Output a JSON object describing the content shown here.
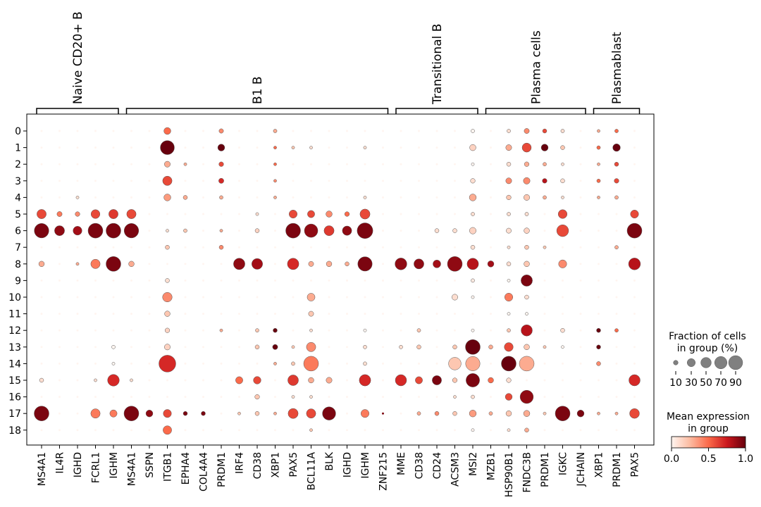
{
  "chart_data": {
    "type": "dotplot",
    "title": "",
    "xlabel": "",
    "ylabel": "",
    "rows": [
      "0",
      "1",
      "2",
      "3",
      "4",
      "5",
      "6",
      "7",
      "8",
      "9",
      "10",
      "11",
      "12",
      "13",
      "14",
      "15",
      "16",
      "17",
      "18"
    ],
    "genes": [
      "MS4A1",
      "IL4R",
      "IGHD",
      "FCRL1",
      "IGHM",
      "MS4A1",
      "SSPN",
      "ITGB1",
      "EPHA4",
      "COL4A4",
      "PRDM1",
      "IRF4",
      "CD38",
      "XBP1",
      "PAX5",
      "BCL11A",
      "BLK",
      "IGHD",
      "IGHM",
      "ZNF215",
      "MME",
      "CD38",
      "CD24",
      "ACSM3",
      "MSI2",
      "MZB1",
      "HSP90B1",
      "FNDC3B",
      "PRDM1",
      "IGKC",
      "JCHAIN",
      "XBP1",
      "PRDM1",
      "PAX5"
    ],
    "groups": [
      {
        "label": "Naive CD20+ B",
        "start": 0,
        "end": 4
      },
      {
        "label": "B1 B",
        "start": 5,
        "end": 19
      },
      {
        "label": "Transitional B",
        "start": 20,
        "end": 24
      },
      {
        "label": "Plasma cells",
        "start": 25,
        "end": 30
      },
      {
        "label": "Plasmablast",
        "start": 31,
        "end": 33
      }
    ],
    "fraction": [
      [
        2,
        2,
        2,
        2,
        2,
        2,
        2,
        22,
        2,
        2,
        9,
        2,
        2,
        6,
        2,
        2,
        2,
        2,
        2,
        2,
        2,
        2,
        2,
        2,
        6,
        2,
        6,
        12,
        8,
        6,
        2,
        4,
        6,
        2
      ],
      [
        2,
        2,
        2,
        2,
        2,
        2,
        2,
        90,
        2,
        2,
        22,
        2,
        2,
        4,
        4,
        4,
        2,
        2,
        4,
        2,
        2,
        2,
        2,
        2,
        18,
        2,
        16,
        38,
        22,
        8,
        2,
        6,
        26,
        2
      ],
      [
        2,
        2,
        2,
        2,
        2,
        2,
        2,
        16,
        4,
        2,
        10,
        2,
        2,
        4,
        2,
        2,
        2,
        2,
        2,
        2,
        2,
        2,
        2,
        2,
        4,
        2,
        8,
        10,
        6,
        4,
        2,
        4,
        8,
        2
      ],
      [
        2,
        2,
        2,
        2,
        2,
        2,
        2,
        40,
        2,
        2,
        12,
        2,
        2,
        4,
        2,
        2,
        2,
        2,
        2,
        2,
        2,
        2,
        2,
        2,
        10,
        2,
        16,
        20,
        10,
        8,
        2,
        6,
        10,
        2
      ],
      [
        2,
        2,
        4,
        2,
        2,
        2,
        2,
        22,
        8,
        2,
        6,
        2,
        2,
        4,
        2,
        2,
        2,
        2,
        4,
        2,
        2,
        2,
        2,
        2,
        22,
        2,
        10,
        16,
        6,
        4,
        2,
        4,
        6,
        2
      ],
      [
        40,
        12,
        10,
        36,
        40,
        40,
        2,
        2,
        2,
        2,
        2,
        2,
        4,
        2,
        30,
        24,
        18,
        10,
        46,
        2,
        2,
        2,
        2,
        2,
        6,
        2,
        6,
        6,
        2,
        36,
        2,
        2,
        2,
        30
      ],
      [
        96,
        46,
        36,
        100,
        100,
        96,
        2,
        4,
        6,
        2,
        4,
        2,
        8,
        2,
        100,
        82,
        46,
        40,
        112,
        2,
        2,
        2,
        8,
        8,
        20,
        2,
        12,
        14,
        2,
        64,
        2,
        2,
        2,
        100
      ],
      [
        2,
        2,
        2,
        2,
        2,
        2,
        2,
        8,
        2,
        2,
        8,
        2,
        2,
        2,
        2,
        2,
        2,
        2,
        2,
        2,
        2,
        2,
        2,
        2,
        8,
        2,
        4,
        8,
        4,
        2,
        2,
        2,
        6,
        2
      ],
      [
        14,
        2,
        4,
        40,
        100,
        14,
        2,
        2,
        2,
        2,
        2,
        60,
        54,
        2,
        60,
        12,
        14,
        8,
        94,
        2,
        64,
        46,
        28,
        100,
        60,
        18,
        8,
        14,
        2,
        30,
        2,
        2,
        2,
        64
      ],
      [
        2,
        2,
        2,
        2,
        2,
        2,
        2,
        8,
        2,
        2,
        2,
        2,
        2,
        2,
        2,
        2,
        2,
        2,
        2,
        2,
        2,
        2,
        2,
        2,
        6,
        2,
        4,
        60,
        2,
        2,
        2,
        2,
        2,
        2
      ],
      [
        2,
        2,
        2,
        2,
        2,
        2,
        2,
        42,
        2,
        2,
        2,
        2,
        2,
        2,
        2,
        28,
        2,
        2,
        2,
        2,
        2,
        2,
        2,
        16,
        4,
        2,
        30,
        8,
        2,
        2,
        2,
        2,
        2,
        2
      ],
      [
        2,
        2,
        2,
        2,
        2,
        2,
        2,
        14,
        2,
        2,
        2,
        2,
        2,
        2,
        2,
        12,
        2,
        2,
        2,
        2,
        2,
        2,
        2,
        2,
        2,
        2,
        4,
        4,
        2,
        2,
        2,
        2,
        2,
        2
      ],
      [
        2,
        2,
        2,
        2,
        2,
        2,
        2,
        10,
        2,
        2,
        4,
        2,
        6,
        8,
        2,
        4,
        2,
        2,
        4,
        2,
        2,
        6,
        2,
        2,
        4,
        2,
        6,
        58,
        2,
        8,
        2,
        8,
        6,
        2
      ],
      [
        2,
        2,
        2,
        2,
        6,
        2,
        2,
        16,
        2,
        2,
        2,
        2,
        8,
        12,
        4,
        40,
        2,
        2,
        6,
        2,
        6,
        8,
        2,
        8,
        100,
        8,
        36,
        14,
        4,
        4,
        2,
        8,
        2,
        2
      ],
      [
        2,
        2,
        2,
        2,
        4,
        2,
        2,
        130,
        2,
        2,
        2,
        2,
        2,
        4,
        6,
        100,
        2,
        2,
        6,
        2,
        2,
        2,
        2,
        72,
        94,
        2,
        100,
        100,
        2,
        2,
        2,
        8,
        2,
        2
      ],
      [
        8,
        2,
        2,
        4,
        62,
        4,
        2,
        2,
        2,
        2,
        2,
        24,
        26,
        2,
        52,
        14,
        16,
        2,
        60,
        2,
        58,
        24,
        40,
        10,
        84,
        14,
        10,
        2,
        2,
        2,
        2,
        2,
        2,
        58
      ],
      [
        2,
        2,
        2,
        2,
        2,
        2,
        2,
        2,
        2,
        2,
        2,
        2,
        10,
        2,
        4,
        4,
        2,
        2,
        2,
        2,
        2,
        2,
        2,
        4,
        6,
        2,
        22,
        80,
        2,
        2,
        2,
        2,
        2,
        2
      ],
      [
        100,
        2,
        2,
        40,
        24,
        100,
        22,
        30,
        8,
        8,
        2,
        4,
        8,
        4,
        46,
        40,
        80,
        2,
        30,
        2,
        2,
        6,
        8,
        8,
        22,
        6,
        14,
        18,
        4,
        100,
        22,
        4,
        4,
        44
      ],
      [
        2,
        2,
        2,
        2,
        2,
        2,
        2,
        34,
        2,
        2,
        2,
        2,
        2,
        2,
        2,
        4,
        2,
        2,
        2,
        2,
        2,
        2,
        2,
        2,
        4,
        2,
        4,
        8,
        2,
        2,
        2,
        2,
        2,
        2
      ]
    ],
    "expression": [
      [
        0,
        0,
        0,
        0,
        0,
        0,
        0,
        0.5,
        0,
        0,
        0.4,
        0,
        0,
        0.3,
        0,
        0,
        0,
        0,
        0,
        0,
        0,
        0,
        0,
        0,
        0,
        0,
        0.1,
        0.4,
        0.6,
        0.1,
        0,
        0.3,
        0.5,
        0
      ],
      [
        0,
        0,
        0,
        0,
        0,
        0,
        0,
        1.0,
        0,
        0,
        1.0,
        0,
        0,
        0.5,
        0.2,
        0.1,
        0,
        0,
        0.1,
        0,
        0,
        0,
        0,
        0,
        0.15,
        0,
        0.3,
        0.6,
        1.0,
        0.2,
        0,
        0.5,
        1.0,
        0
      ],
      [
        0,
        0,
        0,
        0,
        0,
        0,
        0,
        0.3,
        0.3,
        0,
        0.6,
        0,
        0,
        0.5,
        0,
        0,
        0,
        0,
        0,
        0,
        0,
        0,
        0,
        0,
        0,
        0,
        0.1,
        0.3,
        0.3,
        0.1,
        0,
        0.3,
        0.6,
        0
      ],
      [
        0,
        0,
        0,
        0,
        0,
        0,
        0,
        0.6,
        0,
        0,
        0.7,
        0,
        0,
        0.4,
        0,
        0,
        0,
        0,
        0,
        0,
        0,
        0,
        0,
        0,
        0.1,
        0,
        0.4,
        0.4,
        0.8,
        0.1,
        0,
        0.5,
        0.6,
        0
      ],
      [
        0,
        0,
        0.1,
        0,
        0,
        0,
        0,
        0.35,
        0.3,
        0,
        0.3,
        0,
        0,
        0.3,
        0,
        0,
        0,
        0,
        0.1,
        0,
        0,
        0,
        0,
        0,
        0.3,
        0,
        0.2,
        0.2,
        0.3,
        0.1,
        0,
        0.3,
        0.3,
        0
      ],
      [
        0.6,
        0.45,
        0.4,
        0.6,
        0.65,
        0.6,
        0,
        0,
        0,
        0,
        0,
        0,
        0.1,
        0,
        0.6,
        0.6,
        0.4,
        0.5,
        0.6,
        0,
        0,
        0,
        0,
        0,
        0.1,
        0,
        0.1,
        0.1,
        0,
        0.6,
        0,
        0,
        0,
        0.6
      ],
      [
        0.95,
        0.9,
        0.85,
        0.95,
        0.95,
        0.95,
        0,
        0.1,
        0.2,
        0,
        0.3,
        0,
        0.15,
        0,
        0.95,
        0.9,
        0.65,
        0.9,
        0.95,
        0,
        0,
        0,
        0.1,
        0.1,
        0.15,
        0,
        0.1,
        0.15,
        0,
        0.6,
        0,
        0,
        0,
        0.95
      ],
      [
        0,
        0,
        0,
        0,
        0,
        0,
        0,
        0.2,
        0,
        0,
        0.4,
        0,
        0,
        0,
        0,
        0,
        0,
        0,
        0,
        0,
        0,
        0,
        0,
        0,
        0.1,
        0,
        0.1,
        0.2,
        0.2,
        0,
        0,
        0,
        0.3,
        0
      ],
      [
        0.3,
        0,
        0.3,
        0.45,
        0.95,
        0.3,
        0,
        0,
        0,
        0,
        0,
        0.9,
        0.85,
        0,
        0.7,
        0.3,
        0.3,
        0.3,
        0.95,
        0,
        0.9,
        0.9,
        0.85,
        0.9,
        0.8,
        0.85,
        0.1,
        0.2,
        0,
        0.4,
        0,
        0,
        0,
        0.8
      ],
      [
        0,
        0,
        0,
        0,
        0,
        0,
        0,
        0.1,
        0,
        0,
        0,
        0,
        0,
        0,
        0,
        0,
        0,
        0,
        0,
        0,
        0,
        0,
        0,
        0,
        0.05,
        0,
        0,
        0.95,
        0,
        0,
        0,
        0,
        0,
        0
      ],
      [
        0,
        0,
        0,
        0,
        0,
        0,
        0,
        0.4,
        0,
        0,
        0,
        0,
        0,
        0,
        0,
        0.3,
        0,
        0,
        0,
        0,
        0,
        0,
        0,
        0.1,
        0,
        0,
        0.45,
        0.1,
        0,
        0,
        0,
        0,
        0,
        0
      ],
      [
        0,
        0,
        0,
        0,
        0,
        0,
        0,
        0.2,
        0,
        0,
        0,
        0,
        0,
        0,
        0,
        0.2,
        0,
        0,
        0,
        0,
        0,
        0,
        0,
        0,
        0,
        0,
        0,
        0,
        0,
        0,
        0,
        0,
        0,
        0
      ],
      [
        0,
        0,
        0,
        0,
        0,
        0,
        0,
        0.15,
        0,
        0,
        0.3,
        0,
        0.2,
        1.0,
        0,
        0.1,
        0,
        0,
        0,
        0,
        0,
        0.2,
        0,
        0,
        0,
        0,
        0.2,
        0.8,
        0,
        0.1,
        0,
        1.0,
        0.5,
        0
      ],
      [
        0,
        0,
        0,
        0,
        0,
        0,
        0,
        0.15,
        0,
        0,
        0,
        0,
        0.2,
        1.0,
        0.2,
        0.4,
        0,
        0,
        0.1,
        0,
        0.1,
        0.2,
        0,
        0.2,
        1.0,
        0.3,
        0.6,
        0.2,
        0.2,
        0,
        0,
        1.0,
        0,
        0
      ],
      [
        0,
        0,
        0,
        0,
        0,
        0,
        0,
        0.7,
        0,
        0,
        0,
        0,
        0,
        0.3,
        0.2,
        0.45,
        0,
        0,
        0.1,
        0,
        0,
        0,
        0,
        0.2,
        0.3,
        0,
        1.0,
        0.3,
        0,
        0,
        0,
        0.4,
        0,
        0
      ],
      [
        0.1,
        0,
        0,
        0.1,
        0.7,
        0.1,
        0,
        0,
        0,
        0,
        0,
        0.5,
        0.6,
        0,
        0.65,
        0.3,
        0.3,
        0,
        0.7,
        0,
        0.7,
        0.6,
        0.95,
        0.2,
        0.95,
        0.5,
        0.1,
        0,
        0,
        0,
        0,
        0,
        0,
        0.7
      ],
      [
        0,
        0,
        0,
        0,
        0,
        0,
        0,
        0,
        0,
        0,
        0,
        0,
        0.2,
        0,
        0.1,
        0.1,
        0,
        0,
        0,
        0,
        0,
        0,
        0,
        0.1,
        0.1,
        0,
        0.6,
        0.9,
        0,
        0,
        0,
        0,
        0,
        0
      ],
      [
        0.95,
        0,
        0,
        0.45,
        0.45,
        0.95,
        0.9,
        0.6,
        0.95,
        0.95,
        0,
        0.2,
        0.2,
        0.3,
        0.6,
        0.6,
        0.95,
        0,
        0.45,
        0.95,
        0,
        0.3,
        0.4,
        0.2,
        0.35,
        0.3,
        0.2,
        0.3,
        0.2,
        0.95,
        0.95,
        0.3,
        0.3,
        0.6
      ],
      [
        0,
        0,
        0,
        0,
        0,
        0,
        0,
        0.5,
        0,
        0,
        0,
        0,
        0,
        0,
        0,
        0.2,
        0,
        0,
        0,
        0,
        0,
        0,
        0,
        0,
        0,
        0,
        0.1,
        0.3,
        0,
        0,
        0,
        0,
        0,
        0
      ]
    ],
    "size_legend": {
      "title_line1": "Fraction of cells",
      "title_line2": "in group (%)",
      "values": [
        10,
        30,
        50,
        70,
        90
      ],
      "labels": [
        "10",
        "30",
        "50",
        "70",
        "90"
      ]
    },
    "color_legend": {
      "title_line1": "Mean expression",
      "title_line2": "in group",
      "range": [
        0,
        1
      ],
      "ticks": [
        "0.0",
        "0.5",
        "1.0"
      ],
      "colormap": "Reds",
      "colors": [
        "#fff5f0",
        "#fcbba1",
        "#fb6a4a",
        "#cb181d",
        "#67000d"
      ]
    }
  }
}
